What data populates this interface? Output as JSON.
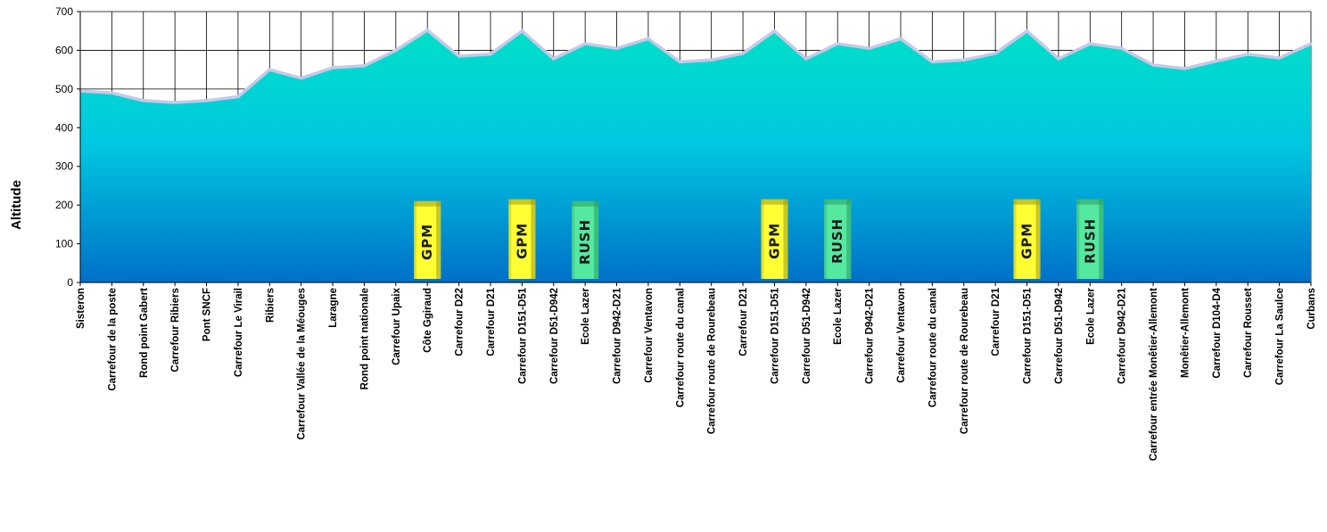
{
  "chart_data": {
    "type": "area",
    "title": "",
    "xlabel": "",
    "ylabel": "Altitude",
    "ylim": [
      0,
      700
    ],
    "yticks": [
      0,
      100,
      200,
      300,
      400,
      500,
      600,
      700
    ],
    "grid": true,
    "categories": [
      "Sisteron",
      "Carrefour de la poste",
      "Rond point Gabert",
      "Carrefour Ribiers",
      "Pont SNCF",
      "Carrefour Le Virail",
      "Ribiers",
      "Carrefour Vallée de la Méouges",
      "Laragne",
      "Rond point nationale",
      "Carrefour Upaix",
      "Côte Ggiraud",
      "Carrefour D22",
      "Carrefour D21",
      "Carrefour D151-D51",
      "Carrefour D51-D942",
      "Ecole Lazer",
      "Carrefour D942-D21",
      "Carrefour Ventavon",
      "Carrefour route du canal",
      "Carrefour route de Rourebeau",
      "Carrefour D21",
      "Carrefour D151-D51",
      "Carrefour D51-D942",
      "Ecole Lazer",
      "Carrefour D942-D21",
      "Carrefour Ventavon",
      "Carrefour route du canal",
      "Carrefour route de Rourebeau",
      "Carrefour D21",
      "Carrefour D151-D51",
      "Carrefour D51-D942",
      "Ecole Lazer",
      "Carrefour D942-D21",
      "Carrefour entrée Monêtier-Allemont",
      "Monêtier-Allemont",
      "Carrefour D104-D4",
      "Carrefour Rousset",
      "Carrefour La Saulce",
      "Curbans"
    ],
    "values": [
      495,
      490,
      470,
      465,
      470,
      480,
      550,
      528,
      555,
      560,
      600,
      652,
      585,
      590,
      650,
      578,
      617,
      605,
      630,
      570,
      575,
      592,
      650,
      578,
      617,
      605,
      630,
      570,
      575,
      592,
      650,
      578,
      617,
      605,
      562,
      553,
      572,
      590,
      580,
      617
    ],
    "markers": [
      {
        "label": "GPM",
        "index": 11,
        "value": 210
      },
      {
        "label": "GPM",
        "index": 14,
        "value": 215
      },
      {
        "label": "RUSH",
        "index": 16,
        "value": 210
      },
      {
        "label": "GPM",
        "index": 22,
        "value": 215
      },
      {
        "label": "RUSH",
        "index": 24,
        "value": 215
      },
      {
        "label": "GPM",
        "index": 30,
        "value": 215
      },
      {
        "label": "RUSH",
        "index": 32,
        "value": 215
      }
    ],
    "colors": {
      "area_top": "#00e0c8",
      "area_mid": "#00c8e0",
      "area_bottom": "#0070c8",
      "outline": "#c8c8e8",
      "gpm": "#ffff33",
      "rush": "#55e8a0"
    }
  }
}
